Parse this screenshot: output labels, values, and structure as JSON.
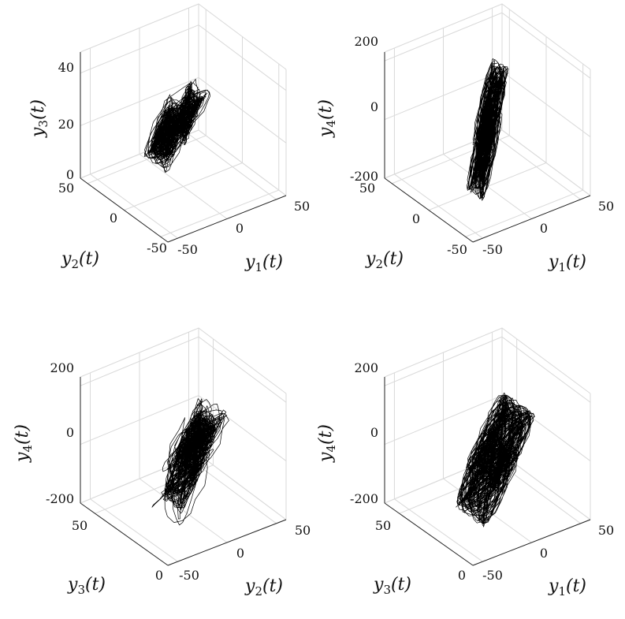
{
  "chart_data": [
    {
      "type": "line",
      "projection": "3d",
      "axes": {
        "x": {
          "label": "y1(t)",
          "ticks": [
            -50,
            0,
            50
          ],
          "range": [
            -60,
            60
          ]
        },
        "y": {
          "label": "y2(t)",
          "ticks": [
            -50,
            0,
            50
          ],
          "range": [
            -60,
            60
          ]
        },
        "z": {
          "label": "y3(t)",
          "ticks": [
            0,
            20,
            40
          ],
          "range": [
            0,
            48
          ]
        }
      },
      "grid": true,
      "attractor": {
        "center": [
          -5,
          3,
          24
        ],
        "spread": [
          14,
          15,
          10
        ],
        "wings": [
          [
            -14,
            2,
            22
          ],
          [
            8,
            5,
            26
          ]
        ]
      }
    },
    {
      "type": "line",
      "projection": "3d",
      "axes": {
        "x": {
          "label": "y1(t)",
          "ticks": [
            -50,
            0,
            50
          ],
          "range": [
            -60,
            60
          ]
        },
        "y": {
          "label": "y2(t)",
          "ticks": [
            -50,
            0,
            50
          ],
          "range": [
            -60,
            60
          ]
        },
        "z": {
          "label": "y4(t)",
          "ticks": [
            -200,
            0,
            200
          ],
          "range": [
            -200,
            230
          ]
        }
      },
      "grid": true,
      "attractor": {
        "center": [
          0,
          0,
          0
        ],
        "spread": [
          10,
          10,
          140
        ],
        "wings": [
          [
            -6,
            -4,
            -60
          ],
          [
            6,
            4,
            60
          ]
        ]
      }
    },
    {
      "type": "line",
      "projection": "3d",
      "axes": {
        "x": {
          "label": "y2(t)",
          "ticks": [
            -50,
            0,
            50
          ],
          "range": [
            -60,
            60
          ]
        },
        "y": {
          "label": "y3(t)",
          "ticks": [
            0,
            50
          ],
          "range": [
            0,
            60
          ]
        },
        "z": {
          "label": "y4(t)",
          "ticks": [
            -200,
            0,
            200
          ],
          "range": [
            -200,
            230
          ]
        }
      },
      "grid": true,
      "attractor": {
        "center": [
          -2,
          26,
          -10
        ],
        "spread": [
          20,
          10,
          110
        ],
        "wings": [
          [
            -12,
            22,
            -40
          ],
          [
            10,
            28,
            30
          ]
        ]
      }
    },
    {
      "type": "line",
      "projection": "3d",
      "axes": {
        "x": {
          "label": "y1(t)",
          "ticks": [
            -50,
            0,
            50
          ],
          "range": [
            -60,
            60
          ]
        },
        "y": {
          "label": "y3(t)",
          "ticks": [
            0,
            50
          ],
          "range": [
            0,
            60
          ]
        },
        "z": {
          "label": "y4(t)",
          "ticks": [
            -200,
            0,
            200
          ],
          "range": [
            -200,
            230
          ]
        }
      },
      "grid": true,
      "attractor": {
        "center": [
          -2,
          26,
          -10
        ],
        "spread": [
          20,
          10,
          110
        ],
        "wings": [
          [
            -12,
            22,
            -40
          ],
          [
            10,
            28,
            30
          ]
        ]
      }
    }
  ]
}
